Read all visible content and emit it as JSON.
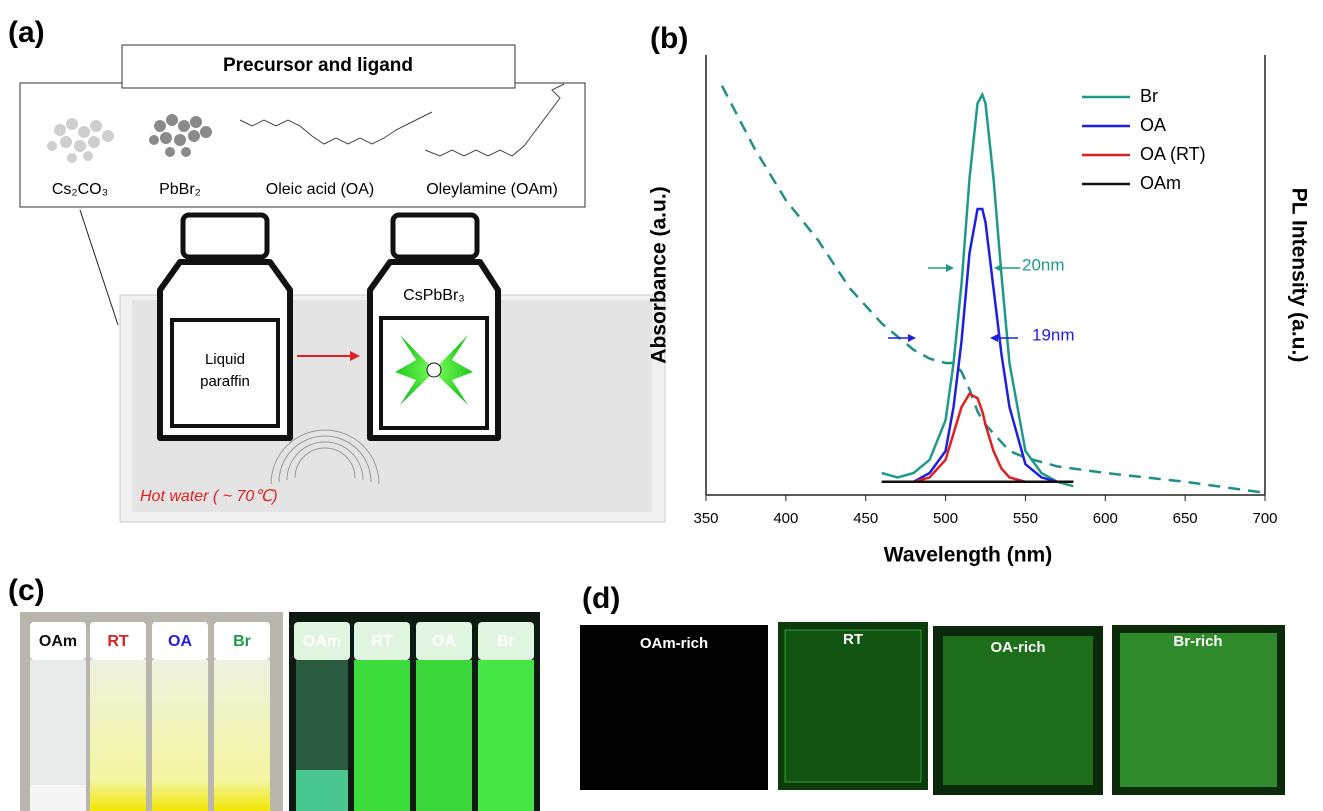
{
  "panels": {
    "a": "(a)",
    "b": "(b)",
    "c": "(c)",
    "d": "(d)"
  },
  "panel_a": {
    "title": "Precursor and ligand",
    "items": [
      "Cs₂CO₃",
      "PbBr₂",
      "Oleic acid (OA)",
      "Oleylamine (OAm)"
    ],
    "left_bottle": [
      "Liquid",
      "paraffin"
    ],
    "right_bottle": "CsPbBr₃",
    "bath": "Hot water ( ~ 70℃)"
  },
  "chart_data": {
    "type": "line",
    "xlabel": "Wavelength (nm)",
    "ylabel": "Absorbance (a.u.)",
    "y2label": "PL Intensity (a.u.)",
    "x": [
      360,
      380,
      400,
      420,
      440,
      460,
      470,
      480,
      490,
      500,
      505,
      510,
      515,
      520,
      523,
      525,
      530,
      535,
      540,
      550,
      560,
      570,
      580,
      600,
      650,
      700
    ],
    "xlim": [
      350,
      700
    ],
    "xticks": [
      350,
      400,
      450,
      500,
      550,
      600,
      650,
      700
    ],
    "ylim": [
      0,
      1
    ],
    "series": [
      {
        "color": "#1f8f88",
        "dash": true,
        "values": [
          0.93,
          0.79,
          0.67,
          0.58,
          0.47,
          0.39,
          0.36,
          0.33,
          0.31,
          0.3,
          0.3,
          0.28,
          0.24,
          0.19,
          0.17,
          0.16,
          0.14,
          0.12,
          0.1,
          0.085,
          0.075,
          0.065,
          0.06,
          0.05,
          0.03,
          0.005
        ]
      },
      {
        "name": "Br",
        "color": "#1f9a8a",
        "values": [
          null,
          null,
          null,
          null,
          null,
          0.05,
          0.04,
          0.05,
          0.08,
          0.17,
          0.3,
          0.48,
          0.72,
          0.89,
          0.91,
          0.89,
          0.72,
          0.5,
          0.3,
          0.1,
          0.05,
          0.03,
          0.02,
          null,
          null,
          null
        ]
      },
      {
        "name": "OA",
        "color": "#1f1fe0",
        "values": [
          null,
          null,
          null,
          null,
          null,
          0.03,
          0.03,
          0.03,
          0.05,
          0.1,
          0.2,
          0.35,
          0.55,
          0.65,
          0.65,
          0.62,
          0.47,
          0.32,
          0.2,
          0.07,
          0.04,
          0.03,
          0.03,
          null,
          null,
          null
        ]
      },
      {
        "name": "OA (RT)",
        "color": "#e02020",
        "values": [
          null,
          null,
          null,
          null,
          null,
          0.03,
          0.03,
          0.03,
          0.04,
          0.08,
          0.14,
          0.2,
          0.23,
          0.22,
          0.19,
          0.16,
          0.1,
          0.06,
          0.04,
          0.03,
          0.03,
          0.03,
          0.03,
          null,
          null,
          null
        ]
      },
      {
        "name": "OAm",
        "color": "#111111",
        "values": [
          null,
          null,
          null,
          null,
          null,
          0.03,
          0.03,
          0.03,
          0.03,
          0.03,
          0.03,
          0.03,
          0.03,
          0.03,
          0.03,
          0.03,
          0.03,
          0.03,
          0.03,
          0.03,
          0.03,
          0.03,
          0.03,
          null,
          null,
          null
        ]
      }
    ],
    "annotations": [
      {
        "text": "20nm",
        "color": "#1f9a8a"
      },
      {
        "text": "19nm",
        "color": "#1f1fe0"
      }
    ]
  },
  "panel_c": {
    "left_labels": [
      "OAm",
      "RT",
      "OA",
      "Br"
    ],
    "right_labels": [
      "OAm",
      "RT",
      "OA",
      "Br"
    ]
  },
  "panel_d": {
    "labels": [
      "OAm-rich",
      "RT",
      "OA-rich",
      "Br-rich"
    ]
  }
}
